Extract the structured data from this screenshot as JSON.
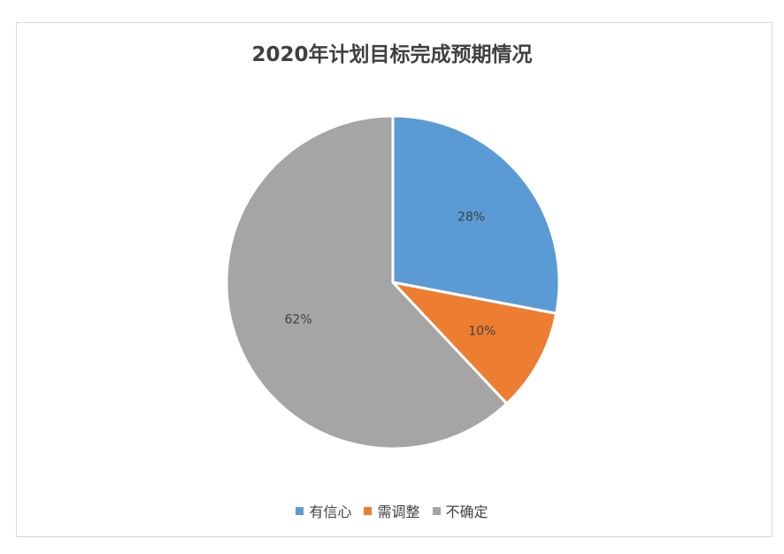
{
  "chart_data": {
    "type": "pie",
    "title": "2020年计划目标完成预期情况",
    "slices": [
      {
        "name": "有信心",
        "value": 28,
        "label": "28%",
        "color": "#5b9bd5"
      },
      {
        "name": "需调整",
        "value": 10,
        "label": "10%",
        "color": "#ed7d31"
      },
      {
        "name": "不确定",
        "value": 62,
        "label": "62%",
        "color": "#a5a5a5"
      }
    ],
    "legend_position": "bottom"
  }
}
